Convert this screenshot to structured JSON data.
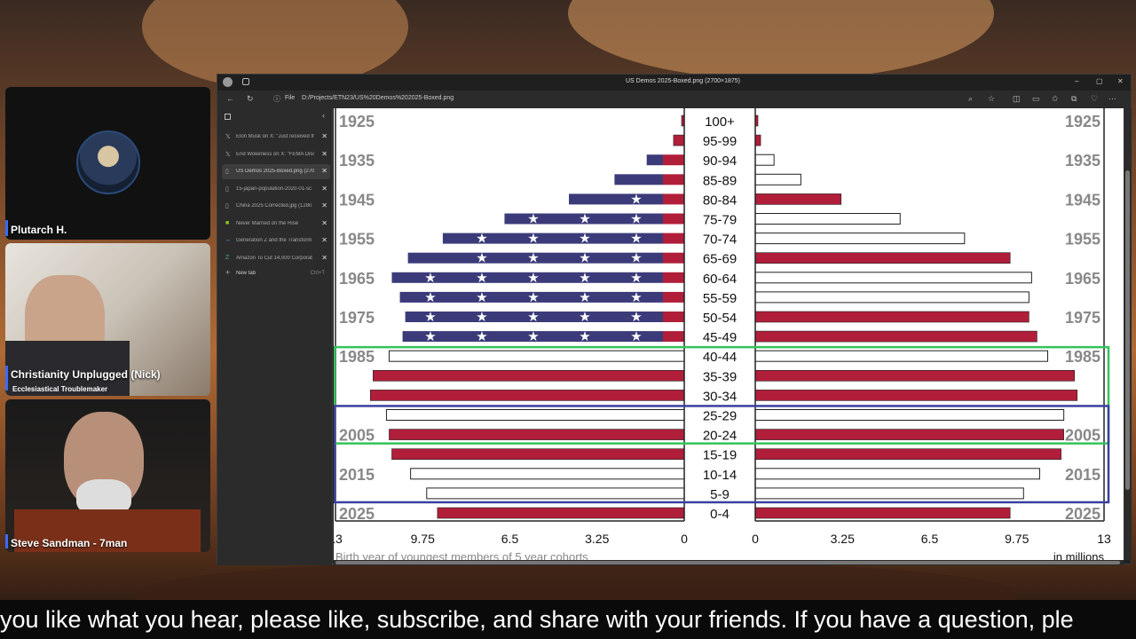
{
  "browser": {
    "window_title": "US Demos 2025-Boxed.png (2700×1875)",
    "address_prefix": "File",
    "address": "D:/Projects/ETN23/US%20Demos%202025-Boxed.png",
    "tabs": [
      {
        "icon": "x-icon",
        "label": "Elon Musk on X: \"Just received th",
        "active": false
      },
      {
        "icon": "x-icon",
        "label": "End Wokeness on X: \"FEMA Disc",
        "active": false
      },
      {
        "icon": "file-icon",
        "label": "US Demos 2025-Boxed.png (270",
        "active": true
      },
      {
        "icon": "file-icon",
        "label": "15-japan-population-2020-01-sc",
        "active": false
      },
      {
        "icon": "file-icon",
        "label": "China 2025 Corrected.jpg (1280",
        "active": false
      },
      {
        "icon": "cb-icon",
        "label": "Never Married on the Rise",
        "active": false
      },
      {
        "icon": "wave-icon",
        "label": "Generation Z and the Transform",
        "active": false
      },
      {
        "icon": "z-icon",
        "label": "Amazon To Cut 14,000 Corporat",
        "active": false
      }
    ],
    "new_tab_label": "New tab",
    "new_tab_shortcut": "Ctrl+T"
  },
  "participants": [
    {
      "name": "Plutarch H.",
      "subtitle": ""
    },
    {
      "name": "Christianity Unplugged (Nick)",
      "subtitle": "Ecclesiastical Troublemaker"
    },
    {
      "name": "Steve Sandman - 7man",
      "subtitle": ""
    }
  ],
  "caption": "you like what you hear, please like, subscribe, and share with your friends. If you have a question, ple",
  "chart_data": {
    "type": "bar",
    "subtype": "population-pyramid",
    "left_label": "Birth year of youngest members of 5 year cohorts",
    "right_label": "in millions",
    "xlim": [
      13,
      0,
      13
    ],
    "x_ticks_left": [
      "13",
      "9.75",
      "6.5",
      "3.25",
      "0"
    ],
    "x_ticks_right": [
      "0",
      "3.25",
      "6.5",
      "9.75",
      "13"
    ],
    "categories": [
      "100+",
      "95-99",
      "90-94",
      "85-89",
      "80-84",
      "75-79",
      "70-74",
      "65-69",
      "60-64",
      "55-59",
      "50-54",
      "45-49",
      "40-44",
      "35-39",
      "30-34",
      "25-29",
      "20-24",
      "15-19",
      "10-14",
      "5-9",
      "0-4"
    ],
    "series": [
      {
        "name": "left",
        "values": [
          0.1,
          0.4,
          1.4,
          2.6,
          4.3,
          6.7,
          9.0,
          10.3,
          10.9,
          10.6,
          10.4,
          10.5,
          11.0,
          11.6,
          11.7,
          11.1,
          11.0,
          10.9,
          10.2,
          9.6,
          9.2
        ]
      },
      {
        "name": "right",
        "values": [
          0.1,
          0.2,
          0.7,
          1.7,
          3.2,
          5.4,
          7.8,
          9.5,
          10.3,
          10.2,
          10.2,
          10.5,
          10.9,
          11.9,
          12.0,
          11.5,
          11.5,
          11.4,
          10.6,
          10.0,
          9.5
        ]
      }
    ],
    "birth_years": [
      {
        "row": 0,
        "label": "1925"
      },
      {
        "row": 2,
        "label": "1935"
      },
      {
        "row": 4,
        "label": "1945"
      },
      {
        "row": 6,
        "label": "1955"
      },
      {
        "row": 8,
        "label": "1965"
      },
      {
        "row": 10,
        "label": "1975"
      },
      {
        "row": 12,
        "label": "1985"
      },
      {
        "row": 16,
        "label": "2005"
      },
      {
        "row": 18,
        "label": "2015"
      },
      {
        "row": 20,
        "label": "2025"
      }
    ],
    "bar_styles": [
      "solid",
      "solid",
      "flag",
      "flag",
      "flag",
      "flag",
      "flag",
      "flag",
      "flag",
      "flag",
      "flag",
      "flag",
      "hollow",
      "solid",
      "solid",
      "hollow",
      "solid",
      "solid",
      "hollow",
      "hollow",
      "solid"
    ],
    "right_styles": [
      "solid",
      "solid",
      "hollow",
      "hollow",
      "solid",
      "hollow",
      "hollow",
      "solid",
      "hollow",
      "hollow",
      "solid",
      "solid",
      "hollow",
      "solid",
      "solid",
      "hollow",
      "solid",
      "solid",
      "hollow",
      "hollow",
      "solid"
    ],
    "highlight_boxes": [
      {
        "color": "#34c35a",
        "rows": [
          12,
          16
        ]
      },
      {
        "color": "#3b3fa0",
        "rows": [
          15,
          19
        ]
      }
    ],
    "colors": {
      "red": "#b01e3a",
      "blue": "#3b3b7a",
      "star": "#ffffff"
    },
    "grid": false
  }
}
